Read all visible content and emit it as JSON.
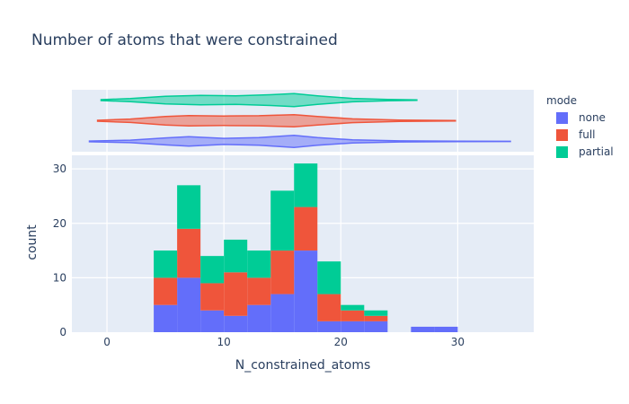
{
  "chart_data": {
    "type": "bar",
    "title": "Number of atoms that were constrained",
    "xlabel": "N_constrained_atoms",
    "ylabel": "count",
    "barmode": "stack",
    "xlim": [
      -3,
      36.5
    ],
    "ylim": [
      0,
      32.5
    ],
    "x_ticks": [
      0,
      10,
      20,
      30
    ],
    "y_ticks": [
      0,
      10,
      20,
      30
    ],
    "bin_edges": [
      4,
      6,
      8,
      10,
      12,
      14,
      16,
      18,
      20,
      22,
      24,
      26,
      28,
      30
    ],
    "legend": {
      "title": "mode",
      "position": "right"
    },
    "grid": true,
    "series": [
      {
        "name": "none",
        "color": "#636efa",
        "values": [
          5,
          10,
          4,
          3,
          5,
          7,
          15,
          2,
          2,
          2,
          0,
          1,
          1
        ]
      },
      {
        "name": "full",
        "color": "#EF553B",
        "values": [
          5,
          9,
          5,
          8,
          5,
          8,
          8,
          5,
          2,
          1,
          0,
          0,
          0
        ]
      },
      {
        "name": "partial",
        "color": "#00cc96",
        "values": [
          5,
          8,
          5,
          6,
          5,
          11,
          8,
          6,
          1,
          1,
          0,
          0,
          0
        ]
      }
    ],
    "marginal": {
      "type": "violin",
      "series": [
        {
          "name": "partial",
          "min": -0.5,
          "max": 26.5,
          "density": [
            [
              -0.5,
              0.05
            ],
            [
              2,
              0.18
            ],
            [
              5,
              0.45
            ],
            [
              8,
              0.55
            ],
            [
              11,
              0.5
            ],
            [
              14,
              0.62
            ],
            [
              16,
              0.75
            ],
            [
              18,
              0.5
            ],
            [
              21,
              0.2
            ],
            [
              24,
              0.08
            ],
            [
              26.5,
              0.03
            ]
          ]
        },
        {
          "name": "full",
          "min": -0.8,
          "max": 29.8,
          "density": [
            [
              -0.8,
              0.05
            ],
            [
              2,
              0.2
            ],
            [
              5,
              0.5
            ],
            [
              7,
              0.6
            ],
            [
              10,
              0.55
            ],
            [
              13,
              0.58
            ],
            [
              16,
              0.7
            ],
            [
              18,
              0.5
            ],
            [
              21,
              0.22
            ],
            [
              25,
              0.08
            ],
            [
              29.8,
              0.02
            ]
          ]
        },
        {
          "name": "none",
          "min": -1.5,
          "max": 34.5,
          "density": [
            [
              -1.5,
              0.04
            ],
            [
              2,
              0.15
            ],
            [
              5,
              0.4
            ],
            [
              7,
              0.55
            ],
            [
              10,
              0.35
            ],
            [
              13,
              0.45
            ],
            [
              16,
              0.7
            ],
            [
              18,
              0.45
            ],
            [
              21,
              0.18
            ],
            [
              25,
              0.06
            ],
            [
              30,
              0.03
            ],
            [
              34.5,
              0.01
            ]
          ]
        }
      ]
    }
  }
}
